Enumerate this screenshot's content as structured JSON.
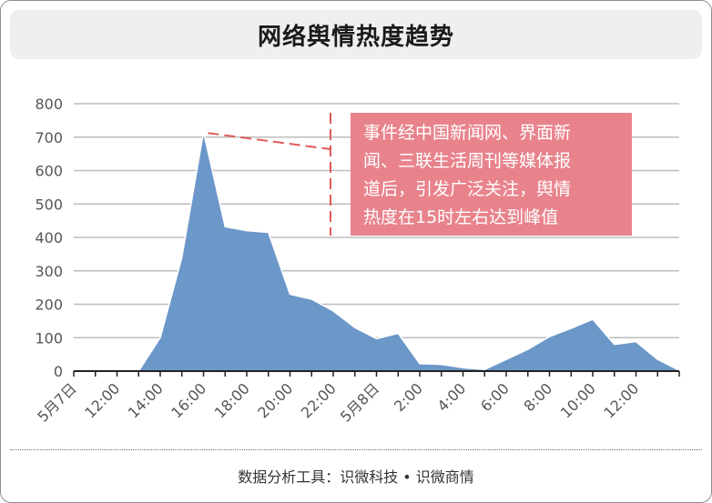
{
  "title": "网络舆情热度趋势",
  "footer": "数据分析工具：识微科技 • 识微商情",
  "annotation": {
    "lines": [
      "事件经中国新闻网、界面新",
      "闻、三联生活周刊等媒体报",
      "道后，引发广泛关注，舆情",
      "热度在15时左右达到峰值"
    ]
  },
  "chart_data": {
    "type": "area",
    "title": "网络舆情热度趋势",
    "xlabel": "",
    "ylabel": "",
    "ylim": [
      0,
      800
    ],
    "yticks": [
      "0",
      "100",
      "200",
      "300",
      "400",
      "500",
      "600",
      "700",
      "800"
    ],
    "grid": true,
    "legend": "none",
    "colors": {
      "area": "#6b97c9",
      "annotation": "#e8838c",
      "dash": "#e05a5a"
    },
    "tick_labels": [
      "5月7日",
      "12:00",
      "14:00",
      "16:00",
      "18:00",
      "20:00",
      "22:00",
      "5月8日",
      "2:00",
      "4:00",
      "6:00",
      "8:00",
      "10:00",
      "12:00"
    ],
    "x": [
      "5月7日 9:00",
      "5月7日 10:00",
      "5月7日 11:00",
      "5月7日 12:00",
      "5月7日 13:00",
      "5月7日 14:00",
      "5月7日 15:00",
      "5月7日 16:00",
      "5月7日 17:00",
      "5月7日 18:00",
      "5月7日 19:00",
      "5月7日 20:00",
      "5月7日 21:00",
      "5月7日 22:00",
      "5月7日 23:00",
      "5月8日 0:00",
      "5月8日 1:00",
      "5月8日 2:00",
      "5月8日 3:00",
      "5月8日 4:00",
      "5月8日 5:00",
      "5月8日 6:00",
      "5月8日 7:00",
      "5月8日 8:00",
      "5月8日 9:00",
      "5月8日 10:00",
      "5月8日 11:00",
      "5月8日 12:00",
      "5月8日 13:00"
    ],
    "values": [
      0,
      0,
      0,
      0,
      100,
      340,
      715,
      432,
      420,
      415,
      230,
      215,
      180,
      130,
      97,
      113,
      22,
      20,
      10,
      5,
      35,
      65,
      103,
      128,
      155,
      80,
      88,
      35,
      2
    ]
  }
}
